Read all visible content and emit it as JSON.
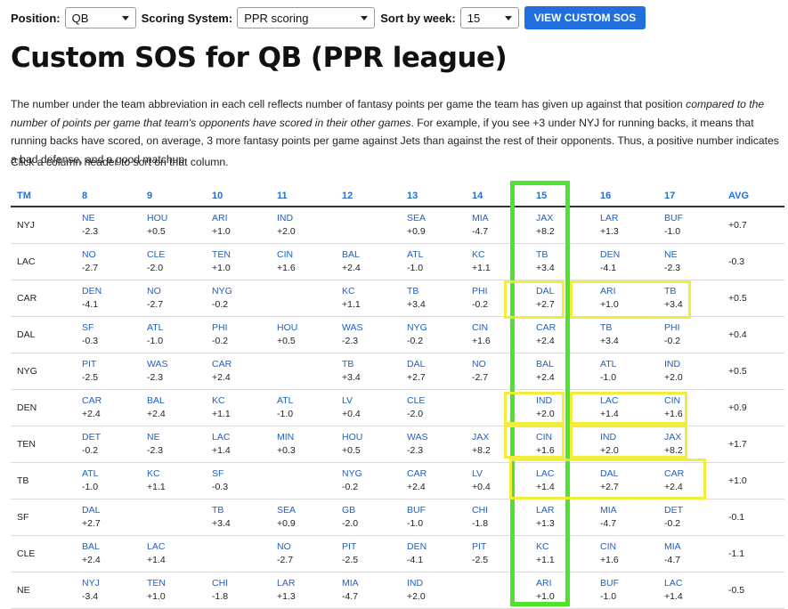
{
  "controls": {
    "position_label": "Position:",
    "position_value": "QB",
    "scoring_label": "Scoring System:",
    "scoring_value": "PPR scoring",
    "week_label": "Sort by week:",
    "week_value": "15",
    "button_label": "VIEW CUSTOM SOS"
  },
  "title": "Custom SOS for QB (PPR league)",
  "description": {
    "part1": "The number under the team abbreviation in each cell reflects number of fantasy points per game the team has given up against that position ",
    "emphasis": "compared to the number of points per game that team's opponents have scored in their other games",
    "part2": ". For example, if you see +3 under NYJ for running backs, it means that running backs have scored, on average, 3 more fantasy points per game against Jets than against the rest of their opponents. Thus, a positive number indicates a bad defense, and a good matchup."
  },
  "hint": "Click a column header to sort on that column.",
  "table": {
    "headers": [
      "TM",
      "8",
      "9",
      "10",
      "11",
      "12",
      "13",
      "14",
      "15",
      "16",
      "17",
      "AVG"
    ],
    "rows": [
      {
        "team": "NYJ",
        "cells": [
          {
            "opp": "NE",
            "val": "-2.3"
          },
          {
            "opp": "HOU",
            "val": "+0.5"
          },
          {
            "opp": "ARI",
            "val": "+1.0"
          },
          {
            "opp": "IND",
            "val": "+2.0"
          },
          {
            "opp": "",
            "val": ""
          },
          {
            "opp": "SEA",
            "val": "+0.9"
          },
          {
            "opp": "MIA",
            "val": "-4.7"
          },
          {
            "opp": "JAX",
            "val": "+8.2"
          },
          {
            "opp": "LAR",
            "val": "+1.3"
          },
          {
            "opp": "BUF",
            "val": "-1.0"
          }
        ],
        "avg": "+0.7"
      },
      {
        "team": "LAC",
        "cells": [
          {
            "opp": "NO",
            "val": "-2.7"
          },
          {
            "opp": "CLE",
            "val": "-2.0"
          },
          {
            "opp": "TEN",
            "val": "+1.0"
          },
          {
            "opp": "CIN",
            "val": "+1.6"
          },
          {
            "opp": "BAL",
            "val": "+2.4"
          },
          {
            "opp": "ATL",
            "val": "-1.0"
          },
          {
            "opp": "KC",
            "val": "+1.1"
          },
          {
            "opp": "TB",
            "val": "+3.4"
          },
          {
            "opp": "DEN",
            "val": "-4.1"
          },
          {
            "opp": "NE",
            "val": "-2.3"
          }
        ],
        "avg": "-0.3"
      },
      {
        "team": "CAR",
        "cells": [
          {
            "opp": "DEN",
            "val": "-4.1"
          },
          {
            "opp": "NO",
            "val": "-2.7"
          },
          {
            "opp": "NYG",
            "val": "-0.2"
          },
          {
            "opp": "",
            "val": ""
          },
          {
            "opp": "KC",
            "val": "+1.1"
          },
          {
            "opp": "TB",
            "val": "+3.4"
          },
          {
            "opp": "PHI",
            "val": "-0.2"
          },
          {
            "opp": "DAL",
            "val": "+2.7"
          },
          {
            "opp": "ARI",
            "val": "+1.0"
          },
          {
            "opp": "TB",
            "val": "+3.4"
          }
        ],
        "avg": "+0.5"
      },
      {
        "team": "DAL",
        "cells": [
          {
            "opp": "SF",
            "val": "-0.3"
          },
          {
            "opp": "ATL",
            "val": "-1.0"
          },
          {
            "opp": "PHI",
            "val": "-0.2"
          },
          {
            "opp": "HOU",
            "val": "+0.5"
          },
          {
            "opp": "WAS",
            "val": "-2.3"
          },
          {
            "opp": "NYG",
            "val": "-0.2"
          },
          {
            "opp": "CIN",
            "val": "+1.6"
          },
          {
            "opp": "CAR",
            "val": "+2.4"
          },
          {
            "opp": "TB",
            "val": "+3.4"
          },
          {
            "opp": "PHI",
            "val": "-0.2"
          }
        ],
        "avg": "+0.4"
      },
      {
        "team": "NYG",
        "cells": [
          {
            "opp": "PIT",
            "val": "-2.5"
          },
          {
            "opp": "WAS",
            "val": "-2.3"
          },
          {
            "opp": "CAR",
            "val": "+2.4"
          },
          {
            "opp": "",
            "val": ""
          },
          {
            "opp": "TB",
            "val": "+3.4"
          },
          {
            "opp": "DAL",
            "val": "+2.7"
          },
          {
            "opp": "NO",
            "val": "-2.7"
          },
          {
            "opp": "BAL",
            "val": "+2.4"
          },
          {
            "opp": "ATL",
            "val": "-1.0"
          },
          {
            "opp": "IND",
            "val": "+2.0"
          }
        ],
        "avg": "+0.5"
      },
      {
        "team": "DEN",
        "cells": [
          {
            "opp": "CAR",
            "val": "+2.4"
          },
          {
            "opp": "BAL",
            "val": "+2.4"
          },
          {
            "opp": "KC",
            "val": "+1.1"
          },
          {
            "opp": "ATL",
            "val": "-1.0"
          },
          {
            "opp": "LV",
            "val": "+0.4"
          },
          {
            "opp": "CLE",
            "val": "-2.0"
          },
          {
            "opp": "",
            "val": ""
          },
          {
            "opp": "IND",
            "val": "+2.0"
          },
          {
            "opp": "LAC",
            "val": "+1.4"
          },
          {
            "opp": "CIN",
            "val": "+1.6"
          }
        ],
        "avg": "+0.9"
      },
      {
        "team": "TEN",
        "cells": [
          {
            "opp": "DET",
            "val": "-0.2"
          },
          {
            "opp": "NE",
            "val": "-2.3"
          },
          {
            "opp": "LAC",
            "val": "+1.4"
          },
          {
            "opp": "MIN",
            "val": "+0.3"
          },
          {
            "opp": "HOU",
            "val": "+0.5"
          },
          {
            "opp": "WAS",
            "val": "-2.3"
          },
          {
            "opp": "JAX",
            "val": "+8.2"
          },
          {
            "opp": "CIN",
            "val": "+1.6"
          },
          {
            "opp": "IND",
            "val": "+2.0"
          },
          {
            "opp": "JAX",
            "val": "+8.2"
          }
        ],
        "avg": "+1.7"
      },
      {
        "team": "TB",
        "cells": [
          {
            "opp": "ATL",
            "val": "-1.0"
          },
          {
            "opp": "KC",
            "val": "+1.1"
          },
          {
            "opp": "SF",
            "val": "-0.3"
          },
          {
            "opp": "",
            "val": ""
          },
          {
            "opp": "NYG",
            "val": "-0.2"
          },
          {
            "opp": "CAR",
            "val": "+2.4"
          },
          {
            "opp": "LV",
            "val": "+0.4"
          },
          {
            "opp": "LAC",
            "val": "+1.4"
          },
          {
            "opp": "DAL",
            "val": "+2.7"
          },
          {
            "opp": "CAR",
            "val": "+2.4"
          }
        ],
        "avg": "+1.0"
      },
      {
        "team": "SF",
        "cells": [
          {
            "opp": "DAL",
            "val": "+2.7"
          },
          {
            "opp": "",
            "val": ""
          },
          {
            "opp": "TB",
            "val": "+3.4"
          },
          {
            "opp": "SEA",
            "val": "+0.9"
          },
          {
            "opp": "GB",
            "val": "-2.0"
          },
          {
            "opp": "BUF",
            "val": "-1.0"
          },
          {
            "opp": "CHI",
            "val": "-1.8"
          },
          {
            "opp": "LAR",
            "val": "+1.3"
          },
          {
            "opp": "MIA",
            "val": "-4.7"
          },
          {
            "opp": "DET",
            "val": "-0.2"
          }
        ],
        "avg": "-0.1"
      },
      {
        "team": "CLE",
        "cells": [
          {
            "opp": "BAL",
            "val": "+2.4"
          },
          {
            "opp": "LAC",
            "val": "+1.4"
          },
          {
            "opp": "",
            "val": ""
          },
          {
            "opp": "NO",
            "val": "-2.7"
          },
          {
            "opp": "PIT",
            "val": "-2.5"
          },
          {
            "opp": "DEN",
            "val": "-4.1"
          },
          {
            "opp": "PIT",
            "val": "-2.5"
          },
          {
            "opp": "KC",
            "val": "+1.1"
          },
          {
            "opp": "CIN",
            "val": "+1.6"
          },
          {
            "opp": "MIA",
            "val": "-4.7"
          }
        ],
        "avg": "-1.1"
      },
      {
        "team": "NE",
        "cells": [
          {
            "opp": "NYJ",
            "val": "-3.4"
          },
          {
            "opp": "TEN",
            "val": "+1.0"
          },
          {
            "opp": "CHI",
            "val": "-1.8"
          },
          {
            "opp": "LAR",
            "val": "+1.3"
          },
          {
            "opp": "MIA",
            "val": "-4.7"
          },
          {
            "opp": "IND",
            "val": "+2.0"
          },
          {
            "opp": "",
            "val": ""
          },
          {
            "opp": "ARI",
            "val": "+1.0"
          },
          {
            "opp": "BUF",
            "val": "-1.0"
          },
          {
            "opp": "LAC",
            "val": "+1.4"
          }
        ],
        "avg": "-0.5"
      }
    ]
  },
  "annotation_colors": {
    "green": "#4ee42c",
    "yellow": "#f2ec3a"
  }
}
